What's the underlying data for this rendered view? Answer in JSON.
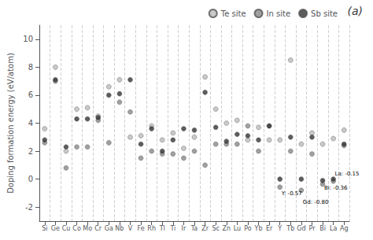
{
  "chart_data": {
    "type": "scatter",
    "title": "(a)",
    "categories": [
      "Si",
      "Ge",
      "Cu",
      "Co",
      "Mo",
      "Cr",
      "Ga",
      "Nb",
      "V",
      "Fe",
      "Rh",
      "Tl",
      "Ti",
      "Ir",
      "Ta",
      "Zr",
      "Sc",
      "Zn",
      "Lu",
      "Po",
      "Yb",
      "Er",
      "Y",
      "Tb",
      "Gd",
      "Pr",
      "Bi",
      "La",
      "Ag"
    ],
    "ylabel": "Doping formation energy (eV/atom)",
    "ylim": [
      -3,
      11
    ],
    "yticks": [
      -2,
      0,
      2,
      4,
      6,
      8,
      10
    ],
    "grid": true,
    "legend": "upper right",
    "series": [
      {
        "name": "Te site",
        "color": "#bbbbbb",
        "values": [
          3.6,
          8.0,
          2.0,
          5.0,
          5.1,
          4.5,
          6.6,
          7.1,
          3.0,
          3.1,
          3.8,
          2.8,
          3.3,
          2.2,
          3.0,
          7.3,
          5.0,
          4.0,
          4.2,
          2.8,
          3.7,
          2.8,
          2.8,
          8.5,
          2.5,
          3.3,
          2.5,
          2.9,
          3.5
        ]
      },
      {
        "name": "In site",
        "color": "#888888",
        "values": [
          2.6,
          7.0,
          0.8,
          2.3,
          2.3,
          4.2,
          2.6,
          5.5,
          4.8,
          1.5,
          2.0,
          1.8,
          1.8,
          1.5,
          2.0,
          1.0,
          2.5,
          2.5,
          2.5,
          3.8,
          2.0,
          3.8,
          -0.57,
          2.0,
          -0.8,
          1.8,
          -0.36,
          -0.15,
          2.4
        ]
      },
      {
        "name": "Sb site",
        "color": "#333333",
        "values": [
          2.8,
          7.1,
          2.3,
          4.3,
          4.3,
          4.4,
          6.0,
          6.1,
          7.1,
          2.5,
          3.6,
          2.0,
          2.8,
          3.6,
          3.5,
          6.2,
          3.7,
          2.7,
          3.2,
          3.1,
          2.8,
          3.8,
          0.0,
          3.0,
          0.0,
          3.0,
          -0.1,
          0.0,
          2.5
        ]
      }
    ],
    "annotations": [
      {
        "text": "Y: -0.57",
        "x": "Y",
        "y": -1.05
      },
      {
        "text": "Gd: -0.80",
        "x": "Gd",
        "y": -1.65
      },
      {
        "text": "Bi: -0.36",
        "x": "Bi",
        "y": -0.65
      },
      {
        "text": "La: -0.15",
        "x": "La",
        "y": 0.4
      }
    ]
  }
}
